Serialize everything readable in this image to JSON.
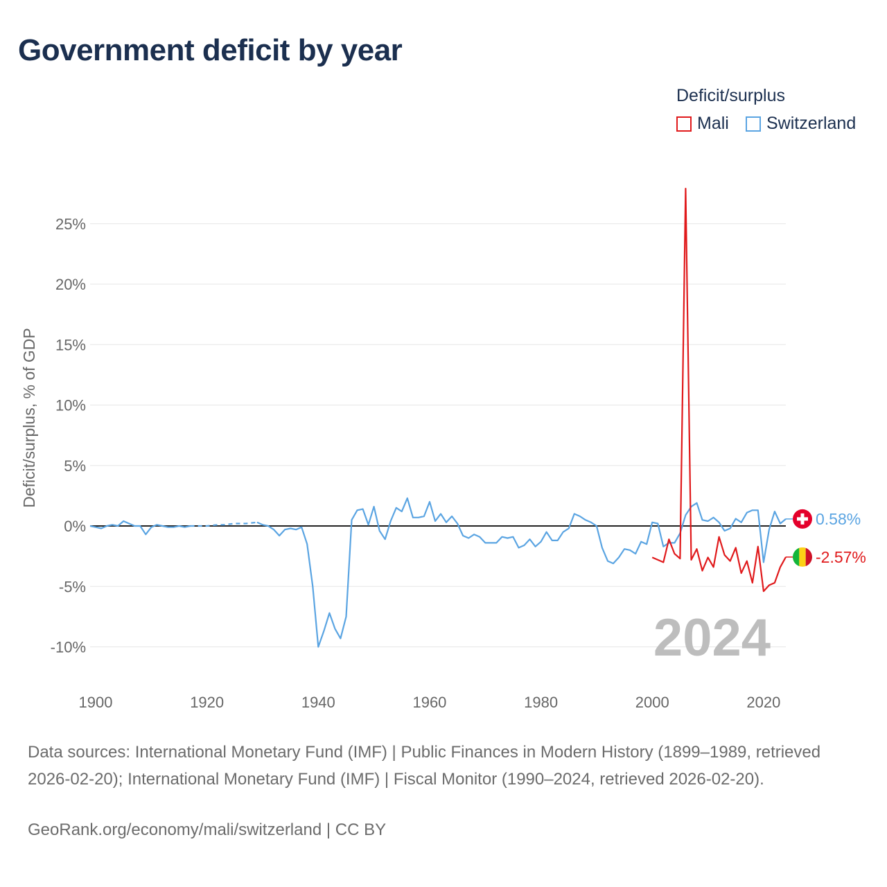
{
  "title": "Government deficit by year",
  "legend": {
    "title": "Deficit/surplus",
    "items": [
      {
        "label": "Mali",
        "color": "#e0191b"
      },
      {
        "label": "Switzerland",
        "color": "#5aa4e2"
      }
    ]
  },
  "chart_data": {
    "type": "line",
    "title": "Government deficit by year",
    "ylabel": "Deficit/surplus, % of GDP",
    "xlabel": "",
    "xlim": [
      1899,
      2024
    ],
    "ylim": [
      -11.5,
      29
    ],
    "xticks": [
      1900,
      1920,
      1940,
      1960,
      1980,
      2000,
      2020
    ],
    "xtick_labels": [
      "1900",
      "1920",
      "1940",
      "1960",
      "1980",
      "2000",
      "2020"
    ],
    "yticks": [
      -10,
      -5,
      0,
      5,
      10,
      15,
      20,
      25
    ],
    "ytick_labels": [
      "-10%",
      "-5%",
      "0%",
      "5%",
      "10%",
      "15%",
      "20%",
      "25%"
    ],
    "grid": true,
    "zero_line": true,
    "current_year_label": "2024",
    "series": [
      {
        "name": "Switzerland",
        "color": "#5aa4e2",
        "end_label": "0.58%",
        "dashed_segments": [
          [
            1917,
            1929
          ]
        ],
        "points": [
          [
            1899,
            0.0
          ],
          [
            1900,
            -0.1
          ],
          [
            1901,
            -0.2
          ],
          [
            1902,
            0.0
          ],
          [
            1903,
            0.1
          ],
          [
            1904,
            0.0
          ],
          [
            1905,
            0.4
          ],
          [
            1906,
            0.2
          ],
          [
            1907,
            0.0
          ],
          [
            1908,
            0.0
          ],
          [
            1909,
            -0.7
          ],
          [
            1910,
            -0.1
          ],
          [
            1911,
            0.1
          ],
          [
            1912,
            0.0
          ],
          [
            1913,
            -0.1
          ],
          [
            1914,
            -0.1
          ],
          [
            1915,
            0.0
          ],
          [
            1916,
            -0.1
          ],
          [
            1917,
            0.0
          ],
          [
            1918,
            0.0
          ],
          [
            1919,
            0.0
          ],
          [
            1920,
            0.0
          ],
          [
            1921,
            0.05
          ],
          [
            1922,
            0.1
          ],
          [
            1923,
            0.1
          ],
          [
            1924,
            0.15
          ],
          [
            1925,
            0.2
          ],
          [
            1926,
            0.2
          ],
          [
            1927,
            0.2
          ],
          [
            1928,
            0.25
          ],
          [
            1929,
            0.3
          ],
          [
            1930,
            0.1
          ],
          [
            1931,
            0.0
          ],
          [
            1932,
            -0.3
          ],
          [
            1933,
            -0.8
          ],
          [
            1934,
            -0.3
          ],
          [
            1935,
            -0.2
          ],
          [
            1936,
            -0.3
          ],
          [
            1937,
            -0.1
          ],
          [
            1938,
            -1.5
          ],
          [
            1939,
            -5.0
          ],
          [
            1940,
            -10.0
          ],
          [
            1941,
            -8.7
          ],
          [
            1942,
            -7.2
          ],
          [
            1943,
            -8.5
          ],
          [
            1944,
            -9.3
          ],
          [
            1945,
            -7.5
          ],
          [
            1946,
            0.5
          ],
          [
            1947,
            1.3
          ],
          [
            1948,
            1.4
          ],
          [
            1949,
            0.1
          ],
          [
            1950,
            1.6
          ],
          [
            1951,
            -0.4
          ],
          [
            1952,
            -1.1
          ],
          [
            1953,
            0.4
          ],
          [
            1954,
            1.5
          ],
          [
            1955,
            1.2
          ],
          [
            1956,
            2.3
          ],
          [
            1957,
            0.7
          ],
          [
            1958,
            0.7
          ],
          [
            1959,
            0.8
          ],
          [
            1960,
            2.0
          ],
          [
            1961,
            0.4
          ],
          [
            1962,
            1.0
          ],
          [
            1963,
            0.3
          ],
          [
            1964,
            0.8
          ],
          [
            1965,
            0.2
          ],
          [
            1966,
            -0.8
          ],
          [
            1967,
            -1.0
          ],
          [
            1968,
            -0.7
          ],
          [
            1969,
            -0.9
          ],
          [
            1970,
            -1.4
          ],
          [
            1971,
            -1.4
          ],
          [
            1972,
            -1.4
          ],
          [
            1973,
            -0.9
          ],
          [
            1974,
            -1.0
          ],
          [
            1975,
            -0.9
          ],
          [
            1976,
            -1.8
          ],
          [
            1977,
            -1.6
          ],
          [
            1978,
            -1.1
          ],
          [
            1979,
            -1.7
          ],
          [
            1980,
            -1.3
          ],
          [
            1981,
            -0.5
          ],
          [
            1982,
            -1.2
          ],
          [
            1983,
            -1.2
          ],
          [
            1984,
            -0.5
          ],
          [
            1985,
            -0.2
          ],
          [
            1986,
            1.0
          ],
          [
            1987,
            0.8
          ],
          [
            1988,
            0.5
          ],
          [
            1989,
            0.3
          ],
          [
            1990,
            0.0
          ],
          [
            1991,
            -1.8
          ],
          [
            1992,
            -2.9
          ],
          [
            1993,
            -3.1
          ],
          [
            1994,
            -2.6
          ],
          [
            1995,
            -1.9
          ],
          [
            1996,
            -2.0
          ],
          [
            1997,
            -2.3
          ],
          [
            1998,
            -1.3
          ],
          [
            1999,
            -1.5
          ],
          [
            2000,
            0.3
          ],
          [
            2001,
            0.2
          ],
          [
            2002,
            -1.7
          ],
          [
            2003,
            -1.4
          ],
          [
            2004,
            -1.4
          ],
          [
            2005,
            -0.6
          ],
          [
            2006,
            0.9
          ],
          [
            2007,
            1.6
          ],
          [
            2008,
            1.9
          ],
          [
            2009,
            0.5
          ],
          [
            2010,
            0.4
          ],
          [
            2011,
            0.7
          ],
          [
            2012,
            0.3
          ],
          [
            2013,
            -0.4
          ],
          [
            2014,
            -0.2
          ],
          [
            2015,
            0.6
          ],
          [
            2016,
            0.3
          ],
          [
            2017,
            1.1
          ],
          [
            2018,
            1.3
          ],
          [
            2019,
            1.3
          ],
          [
            2020,
            -3.0
          ],
          [
            2021,
            -0.3
          ],
          [
            2022,
            1.2
          ],
          [
            2023,
            0.2
          ],
          [
            2024,
            0.58
          ]
        ]
      },
      {
        "name": "Mali",
        "color": "#e0191b",
        "end_label": "-2.57%",
        "points": [
          [
            2000,
            -2.6
          ],
          [
            2001,
            -2.8
          ],
          [
            2002,
            -3.0
          ],
          [
            2003,
            -1.1
          ],
          [
            2004,
            -2.3
          ],
          [
            2005,
            -2.7
          ],
          [
            2006,
            27.9
          ],
          [
            2007,
            -2.8
          ],
          [
            2008,
            -1.9
          ],
          [
            2009,
            -3.7
          ],
          [
            2010,
            -2.6
          ],
          [
            2011,
            -3.4
          ],
          [
            2012,
            -0.9
          ],
          [
            2013,
            -2.4
          ],
          [
            2014,
            -2.9
          ],
          [
            2015,
            -1.8
          ],
          [
            2016,
            -3.9
          ],
          [
            2017,
            -2.9
          ],
          [
            2018,
            -4.7
          ],
          [
            2019,
            -1.7
          ],
          [
            2020,
            -5.4
          ],
          [
            2021,
            -4.9
          ],
          [
            2022,
            -4.7
          ],
          [
            2023,
            -3.4
          ],
          [
            2024,
            -2.57
          ]
        ]
      }
    ]
  },
  "source_text": "Data sources: International Monetary Fund (IMF) | Public Finances in Modern History (1899–1989, retrieved 2026-02-20); International Monetary Fund (IMF) | Fiscal Monitor (1990–2024, retrieved 2026-02-20).",
  "credit_text": "GeoRank.org/economy/mali/switzerland | CC BY"
}
